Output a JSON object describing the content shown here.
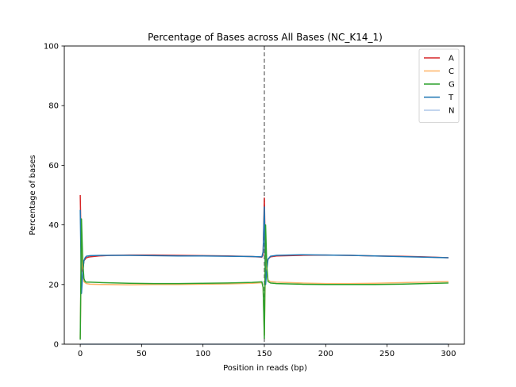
{
  "chart_data": {
    "type": "line",
    "title": "Percentage of Bases across All Bases (NC_K14_1)",
    "xlabel": "Position in reads (bp)",
    "ylabel": "Percentage of bases",
    "xlim": [
      -13,
      313
    ],
    "ylim": [
      0,
      100
    ],
    "xticks": [
      0,
      50,
      100,
      150,
      200,
      250,
      300
    ],
    "yticks": [
      0,
      20,
      40,
      60,
      80,
      100
    ],
    "grid": false,
    "legend_position": "top-right",
    "vertical_line": {
      "x": 150,
      "style": "dashed",
      "color": "#808080"
    },
    "series": [
      {
        "name": "A",
        "color": "#d62728",
        "points": [
          [
            0,
            50
          ],
          [
            1,
            26
          ],
          [
            2,
            24
          ],
          [
            3,
            28
          ],
          [
            4,
            28.5
          ],
          [
            5,
            29
          ],
          [
            8,
            29.3
          ],
          [
            15,
            29.6
          ],
          [
            25,
            29.8
          ],
          [
            40,
            29.9
          ],
          [
            60,
            29.9
          ],
          [
            80,
            29.8
          ],
          [
            100,
            29.7
          ],
          [
            120,
            29.6
          ],
          [
            140,
            29.4
          ],
          [
            148,
            29.2
          ],
          [
            149,
            30
          ],
          [
            150,
            49
          ],
          [
            151,
            24
          ],
          [
            152,
            27
          ],
          [
            153,
            28.5
          ],
          [
            155,
            29.3
          ],
          [
            160,
            29.6
          ],
          [
            180,
            29.8
          ],
          [
            200,
            29.9
          ],
          [
            220,
            29.8
          ],
          [
            240,
            29.6
          ],
          [
            260,
            29.5
          ],
          [
            280,
            29.3
          ],
          [
            300,
            29
          ]
        ]
      },
      {
        "name": "C",
        "color": "#ffb366",
        "points": [
          [
            0,
            2
          ],
          [
            1,
            35
          ],
          [
            2,
            25
          ],
          [
            3,
            21
          ],
          [
            4,
            20.6
          ],
          [
            5,
            20.3
          ],
          [
            8,
            20.1
          ],
          [
            20,
            20
          ],
          [
            40,
            19.9
          ],
          [
            60,
            20
          ],
          [
            80,
            20
          ],
          [
            100,
            20.1
          ],
          [
            120,
            20.2
          ],
          [
            140,
            20.4
          ],
          [
            148,
            20.6
          ],
          [
            149,
            19
          ],
          [
            150,
            3
          ],
          [
            151,
            30
          ],
          [
            152,
            24
          ],
          [
            153,
            21.5
          ],
          [
            155,
            21
          ],
          [
            160,
            20.8
          ],
          [
            180,
            20.5
          ],
          [
            200,
            20.3
          ],
          [
            220,
            20.3
          ],
          [
            240,
            20.4
          ],
          [
            260,
            20.6
          ],
          [
            280,
            20.8
          ],
          [
            300,
            21
          ]
        ]
      },
      {
        "name": "G",
        "color": "#2ca02c",
        "points": [
          [
            0,
            1.5
          ],
          [
            1,
            42
          ],
          [
            2,
            28
          ],
          [
            3,
            22
          ],
          [
            4,
            21
          ],
          [
            5,
            20.8
          ],
          [
            8,
            20.8
          ],
          [
            20,
            20.6
          ],
          [
            40,
            20.4
          ],
          [
            60,
            20.3
          ],
          [
            80,
            20.3
          ],
          [
            100,
            20.4
          ],
          [
            120,
            20.5
          ],
          [
            140,
            20.7
          ],
          [
            148,
            20.9
          ],
          [
            149,
            19
          ],
          [
            150,
            2
          ],
          [
            151,
            40
          ],
          [
            152,
            26
          ],
          [
            153,
            21
          ],
          [
            155,
            20.5
          ],
          [
            160,
            20.3
          ],
          [
            180,
            20.1
          ],
          [
            200,
            20
          ],
          [
            220,
            20
          ],
          [
            240,
            20
          ],
          [
            260,
            20.1
          ],
          [
            280,
            20.3
          ],
          [
            300,
            20.5
          ]
        ]
      },
      {
        "name": "T",
        "color": "#1f77b4",
        "points": [
          [
            0,
            45
          ],
          [
            1,
            17
          ],
          [
            2,
            24
          ],
          [
            3,
            28
          ],
          [
            4,
            29
          ],
          [
            5,
            29.5
          ],
          [
            8,
            29.7
          ],
          [
            20,
            29.8
          ],
          [
            40,
            29.8
          ],
          [
            60,
            29.7
          ],
          [
            80,
            29.6
          ],
          [
            100,
            29.6
          ],
          [
            120,
            29.5
          ],
          [
            140,
            29.4
          ],
          [
            148,
            29.3
          ],
          [
            149,
            31
          ],
          [
            150,
            46
          ],
          [
            151,
            20
          ],
          [
            152,
            25
          ],
          [
            153,
            28.5
          ],
          [
            155,
            29.5
          ],
          [
            160,
            29.8
          ],
          [
            180,
            30
          ],
          [
            200,
            29.9
          ],
          [
            220,
            29.8
          ],
          [
            240,
            29.6
          ],
          [
            260,
            29.4
          ],
          [
            280,
            29.2
          ],
          [
            300,
            29
          ]
        ]
      },
      {
        "name": "N",
        "color": "#aec7e8",
        "points": [
          [
            0,
            0
          ],
          [
            300,
            0
          ]
        ]
      }
    ]
  }
}
